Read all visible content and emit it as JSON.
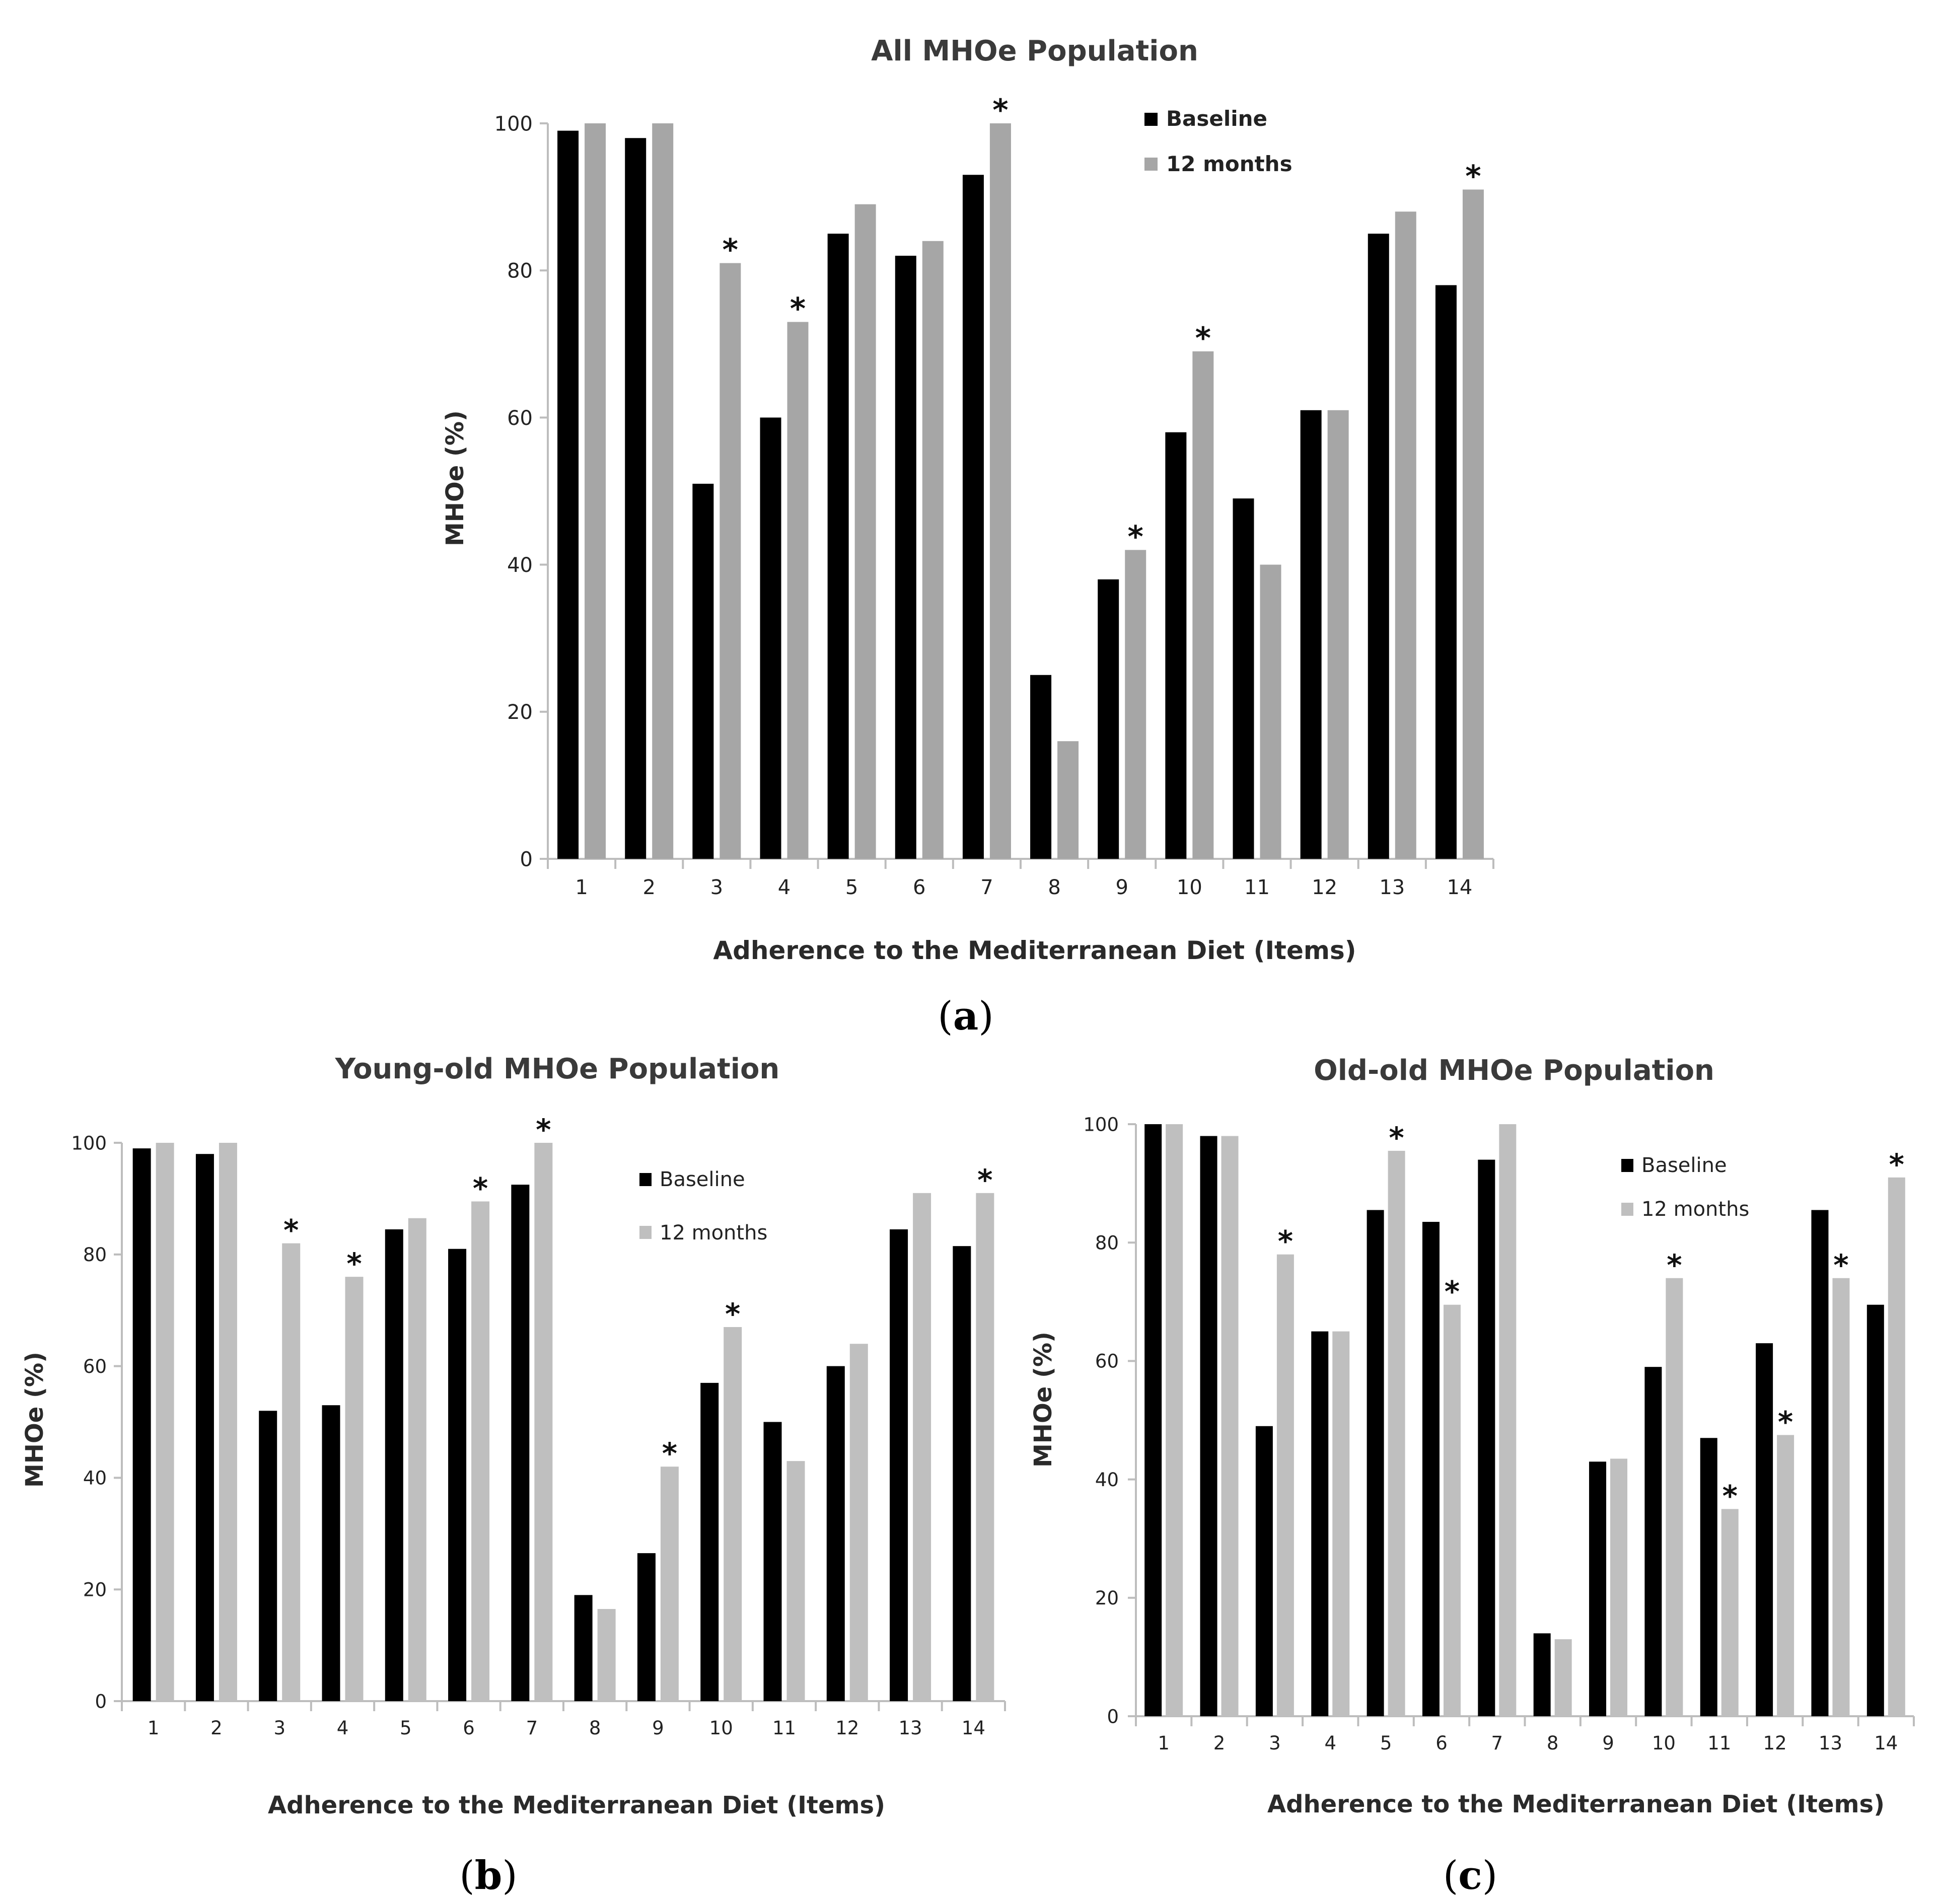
{
  "chart_data": [
    {
      "id": "a",
      "type": "bar",
      "title": "All MHOe Population",
      "xlabel": "Adherence to the Mediterranean Diet (Items)",
      "ylabel": "MHOe (%)",
      "panel_label": "a",
      "ylim": [
        0,
        100
      ],
      "yticks": [
        0,
        20,
        40,
        60,
        80,
        100
      ],
      "grid": false,
      "legend": "top-right",
      "legend_style": "bold",
      "categories": [
        "1",
        "2",
        "3",
        "4",
        "5",
        "6",
        "7",
        "8",
        "9",
        "10",
        "11",
        "12",
        "13",
        "14"
      ],
      "series": [
        {
          "name": "Baseline",
          "color": "#000000",
          "values": [
            99,
            98,
            51,
            60,
            85,
            82,
            93,
            25,
            38,
            58,
            49,
            61,
            85,
            78
          ]
        },
        {
          "name": "12 months",
          "color": "#a6a6a6",
          "values": [
            100,
            100,
            81,
            73,
            89,
            84,
            100,
            16,
            42,
            69,
            40,
            61,
            88,
            91
          ]
        }
      ],
      "annotations": [
        {
          "category": "3",
          "series": "12 months",
          "text": "*"
        },
        {
          "category": "4",
          "series": "12 months",
          "text": "*"
        },
        {
          "category": "7",
          "series": "12 months",
          "text": "*"
        },
        {
          "category": "9",
          "series": "12 months",
          "text": "*"
        },
        {
          "category": "10",
          "series": "12 months",
          "text": "*"
        },
        {
          "category": "14",
          "series": "12 months",
          "text": "*"
        }
      ]
    },
    {
      "id": "b",
      "type": "bar",
      "title": "Young-old MHOe Population",
      "xlabel": "Adherence to the Mediterranean Diet (Items)",
      "ylabel": "MHOe (%)",
      "panel_label": "b",
      "ylim": [
        0,
        100
      ],
      "yticks": [
        0,
        20,
        40,
        60,
        80,
        100
      ],
      "grid": false,
      "legend": "top-right",
      "legend_style": "regular",
      "categories": [
        "1",
        "2",
        "3",
        "4",
        "5",
        "6",
        "7",
        "8",
        "9",
        "10",
        "11",
        "12",
        "13",
        "14"
      ],
      "series": [
        {
          "name": "Baseline",
          "color": "#000000",
          "values": [
            99,
            98,
            52,
            53,
            84.5,
            81,
            92.5,
            19,
            26.5,
            57,
            50,
            60,
            84.5,
            81.5
          ]
        },
        {
          "name": "12 months",
          "color": "#bfbfbf",
          "values": [
            100,
            100,
            82,
            76,
            86.5,
            89.5,
            100,
            16.5,
            42,
            67,
            43,
            64,
            91,
            91
          ]
        }
      ],
      "annotations": [
        {
          "category": "3",
          "series": "12 months",
          "text": "*"
        },
        {
          "category": "4",
          "series": "12 months",
          "text": "*"
        },
        {
          "category": "6",
          "series": "12 months",
          "text": "*"
        },
        {
          "category": "7",
          "series": "12 months",
          "text": "*"
        },
        {
          "category": "9",
          "series": "12 months",
          "text": "*"
        },
        {
          "category": "10",
          "series": "12 months",
          "text": "*"
        },
        {
          "category": "14",
          "series": "12 months",
          "text": "*"
        }
      ]
    },
    {
      "id": "c",
      "type": "bar",
      "title": "Old-old MHOe Population",
      "xlabel": "Adherence to the Mediterranean Diet (Items)",
      "ylabel": "MHOe (%)",
      "panel_label": "c",
      "ylim": [
        0,
        100
      ],
      "yticks": [
        0,
        20,
        40,
        60,
        80,
        100
      ],
      "grid": false,
      "legend": "top-right",
      "legend_style": "regular",
      "categories": [
        "1",
        "2",
        "3",
        "4",
        "5",
        "6",
        "7",
        "8",
        "9",
        "10",
        "11",
        "12",
        "13",
        "14"
      ],
      "series": [
        {
          "name": "Baseline",
          "color": "#000000",
          "values": [
            100,
            98,
            49,
            65,
            85.5,
            83.5,
            94,
            14,
            43,
            59,
            47,
            63,
            85.5,
            69.5
          ]
        },
        {
          "name": "12 months",
          "color": "#bfbfbf",
          "values": [
            100,
            98,
            78,
            65,
            95.5,
            69.5,
            100,
            13,
            43.5,
            74,
            35,
            47.5,
            74,
            91
          ]
        }
      ],
      "annotations": [
        {
          "category": "3",
          "series": "12 months",
          "text": "*"
        },
        {
          "category": "5",
          "series": "12 months",
          "text": "*"
        },
        {
          "category": "6",
          "series": "12 months",
          "text": "*"
        },
        {
          "category": "10",
          "series": "12 months",
          "text": "*"
        },
        {
          "category": "11",
          "series": "12 months",
          "text": "*"
        },
        {
          "category": "12",
          "series": "12 months",
          "text": "*"
        },
        {
          "category": "13",
          "series": "12 months",
          "text": "*"
        },
        {
          "category": "14",
          "series": "12 months",
          "text": "*"
        }
      ]
    }
  ]
}
